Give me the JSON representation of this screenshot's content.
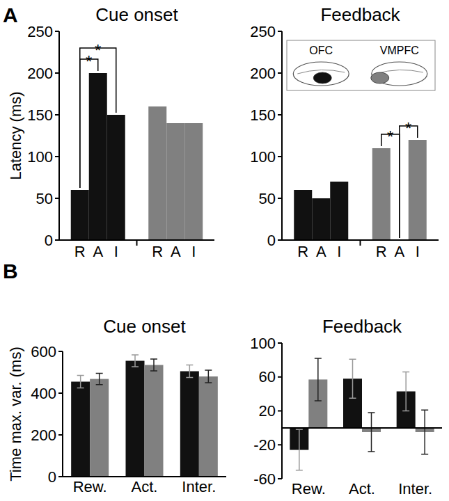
{
  "chart_data": [
    {
      "type": "bar",
      "panel_label": "A",
      "title": "Cue onset",
      "ylabel": "Latency (ms)",
      "categories": [
        "R",
        "A",
        "I"
      ],
      "series": [
        {
          "color": "#111111",
          "values": [
            60,
            200,
            150
          ]
        },
        {
          "color": "#808080",
          "values": [
            160,
            140,
            140
          ]
        }
      ],
      "ylim": [
        0,
        250
      ],
      "yticks": [
        0,
        50,
        100,
        150,
        200,
        250
      ],
      "significance": [
        {
          "label": "*",
          "series": 0,
          "categories": [
            "R",
            "A"
          ]
        },
        {
          "label": "*",
          "series": 0,
          "categories": [
            "R",
            "I"
          ]
        }
      ]
    },
    {
      "type": "bar",
      "title": "Feedback",
      "categories": [
        "R",
        "A",
        "I"
      ],
      "series": [
        {
          "name": "OFC",
          "color": "#111111",
          "values": [
            60,
            50,
            70
          ]
        },
        {
          "name": "VMPFC",
          "color": "#808080",
          "values": [
            110,
            0,
            120
          ]
        }
      ],
      "legend": "top",
      "ylim": [
        0,
        250
      ],
      "yticks": [
        0,
        50,
        100,
        150,
        200,
        250
      ],
      "significance": [
        {
          "label": "*",
          "series": 1,
          "categories": [
            "R",
            "A"
          ]
        },
        {
          "label": "*",
          "series": 1,
          "categories": [
            "A",
            "I"
          ]
        }
      ]
    },
    {
      "type": "bar",
      "panel_label": "B",
      "title": "Cue onset",
      "ylabel": "Time max. var. (ms)",
      "categories": [
        "Rew.",
        "Act.",
        "Inter."
      ],
      "series": [
        {
          "color": "#111111",
          "values": [
            455,
            555,
            505
          ],
          "errors": [
            30,
            28,
            30
          ]
        },
        {
          "color": "#808080",
          "values": [
            468,
            535,
            480
          ],
          "errors": [
            27,
            28,
            30
          ]
        }
      ],
      "ylim": [
        0,
        600
      ],
      "yticks": [
        0,
        200,
        400,
        600
      ]
    },
    {
      "type": "bar",
      "title": "Feedback",
      "categories": [
        "Rew.",
        "Act.",
        "Inter."
      ],
      "series": [
        {
          "color": "#111111",
          "values": [
            -26,
            58,
            43
          ],
          "errors": [
            24,
            23,
            23
          ]
        },
        {
          "color": "#808080",
          "values": [
            57,
            -5,
            -5
          ],
          "errors": [
            25,
            23,
            26
          ]
        }
      ],
      "ylim": [
        -60,
        100
      ],
      "yticks": [
        -60,
        -20,
        20,
        60,
        100
      ]
    }
  ]
}
